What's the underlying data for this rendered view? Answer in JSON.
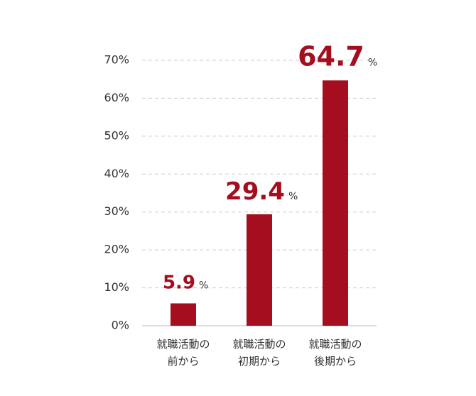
{
  "chart_data": {
    "type": "bar",
    "categories": [
      [
        "就職活動の",
        "前から"
      ],
      [
        "就職活動の",
        "初期から"
      ],
      [
        "就職活動の",
        "後期から"
      ]
    ],
    "values": [
      5.9,
      29.4,
      64.7
    ],
    "value_label_unit": "%",
    "color": "#a50e1e",
    "ylim": [
      0,
      70
    ],
    "yticks": [
      {
        "value": 0,
        "label": "0%"
      },
      {
        "value": 10,
        "label": "10%"
      },
      {
        "value": 20,
        "label": "20%"
      },
      {
        "value": 30,
        "label": "30%"
      },
      {
        "value": 40,
        "label": "40%"
      },
      {
        "value": 50,
        "label": "50%"
      },
      {
        "value": 60,
        "label": "60%"
      },
      {
        "value": 70,
        "label": "70%"
      }
    ],
    "grid": true
  }
}
